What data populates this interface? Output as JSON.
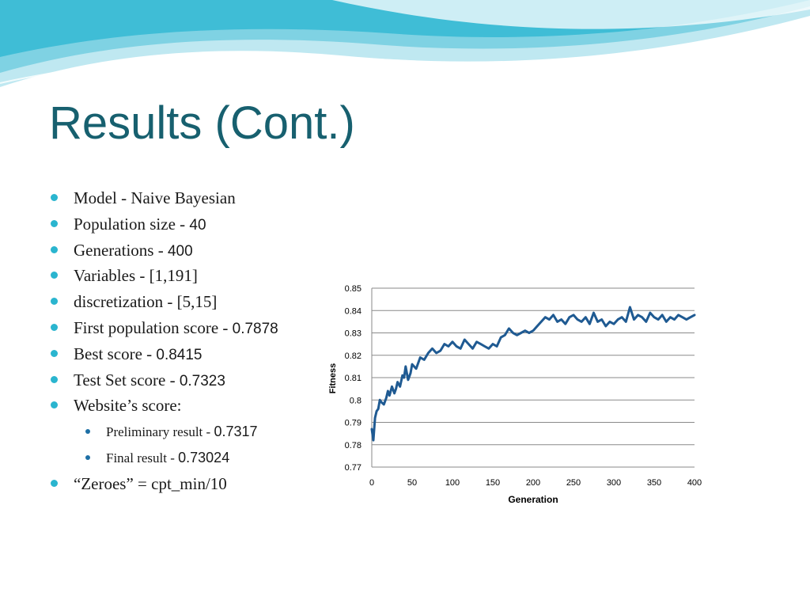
{
  "slide": {
    "title": "Results (Cont.)",
    "bullets": [
      {
        "text": "Model - Naive Bayesian",
        "value": ""
      },
      {
        "text": "Population size - ",
        "value": "40"
      },
      {
        "text": "Generations - ",
        "value": "400"
      },
      {
        "text": "Variables - [1,191]",
        "value": ""
      },
      {
        "text": "discretization - [5,15]",
        "value": ""
      },
      {
        "text": "First population score - ",
        "value": "0.7878"
      },
      {
        "text": "Best score - ",
        "value": "0.8415"
      },
      {
        "text": "Test Set score - ",
        "value": "0.7323"
      },
      {
        "text": "Website’s score:",
        "value": ""
      },
      {
        "text": "Preliminary result  - ",
        "value": "0.7317",
        "sub": true
      },
      {
        "text": "Final result - ",
        "value": "0.73024",
        "sub": true
      },
      {
        "text": "“Zeroes” = cpt_min/10",
        "value": ""
      }
    ],
    "colors": {
      "title": "#17606f",
      "bullet": "#2ab5cf",
      "sub_bullet": "#1d6fa5",
      "line": "#1f5a92"
    }
  },
  "chart_data": {
    "type": "line",
    "title": "",
    "xlabel": "Generation",
    "ylabel": "Fitness",
    "xlim": [
      0,
      400
    ],
    "ylim": [
      0.77,
      0.85
    ],
    "x_ticks": [
      0,
      50,
      100,
      150,
      200,
      250,
      300,
      350,
      400
    ],
    "y_ticks": [
      0.77,
      0.78,
      0.79,
      0.8,
      0.81,
      0.82,
      0.83,
      0.84,
      0.85
    ],
    "y_tick_labels": [
      "0.77",
      "0.78",
      "0.79",
      "0.8",
      "0.81",
      "0.82",
      "0.83",
      "0.84",
      "0.85"
    ],
    "grid": "horizontal",
    "legend": "none",
    "series": [
      {
        "x": [
          0,
          2,
          4,
          6,
          8,
          10,
          12,
          15,
          18,
          20,
          22,
          25,
          28,
          30,
          32,
          35,
          38,
          40,
          42,
          45,
          48,
          50,
          55,
          60,
          65,
          70,
          75,
          80,
          85,
          90,
          95,
          100,
          105,
          110,
          115,
          120,
          125,
          130,
          135,
          140,
          145,
          150,
          155,
          160,
          165,
          170,
          175,
          180,
          185,
          190,
          195,
          200,
          205,
          210,
          215,
          220,
          225,
          230,
          235,
          240,
          245,
          250,
          255,
          260,
          265,
          270,
          275,
          280,
          285,
          290,
          295,
          300,
          305,
          310,
          315,
          320,
          325,
          330,
          335,
          340,
          345,
          350,
          355,
          360,
          365,
          370,
          375,
          380,
          385,
          390,
          395,
          400
        ],
        "y": [
          0.787,
          0.782,
          0.792,
          0.795,
          0.796,
          0.8,
          0.799,
          0.798,
          0.801,
          0.804,
          0.802,
          0.806,
          0.803,
          0.805,
          0.808,
          0.806,
          0.811,
          0.81,
          0.815,
          0.809,
          0.812,
          0.816,
          0.814,
          0.819,
          0.818,
          0.821,
          0.823,
          0.821,
          0.822,
          0.825,
          0.824,
          0.826,
          0.824,
          0.823,
          0.827,
          0.825,
          0.823,
          0.826,
          0.825,
          0.824,
          0.823,
          0.825,
          0.824,
          0.828,
          0.829,
          0.832,
          0.83,
          0.829,
          0.83,
          0.831,
          0.83,
          0.831,
          0.833,
          0.835,
          0.837,
          0.836,
          0.838,
          0.835,
          0.836,
          0.834,
          0.837,
          0.838,
          0.836,
          0.835,
          0.837,
          0.834,
          0.839,
          0.835,
          0.836,
          0.833,
          0.835,
          0.834,
          0.836,
          0.837,
          0.835,
          0.8415,
          0.836,
          0.838,
          0.837,
          0.835,
          0.839,
          0.837,
          0.836,
          0.838,
          0.835,
          0.837,
          0.836,
          0.838,
          0.837,
          0.836,
          0.837,
          0.838
        ]
      }
    ]
  }
}
